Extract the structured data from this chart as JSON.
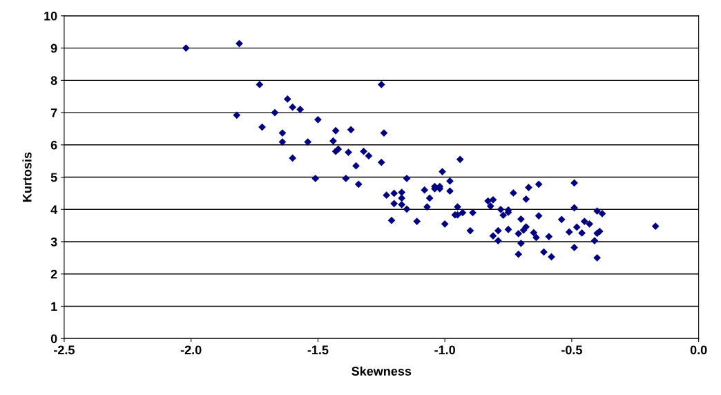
{
  "chart_data": {
    "type": "scatter",
    "xlabel": "Skewness",
    "ylabel": "Kurtosis",
    "marker": "diamond",
    "grid": "y",
    "xlim": [
      -2.5,
      0.0
    ],
    "ylim": [
      0,
      10
    ],
    "xticks": [
      {
        "value": -2.5,
        "label": "-2.5"
      },
      {
        "value": -2.0,
        "label": "-2.0"
      },
      {
        "value": -1.5,
        "label": "-1.5"
      },
      {
        "value": -1.0,
        "label": "-1.0"
      },
      {
        "value": -0.5,
        "label": "-0.5"
      },
      {
        "value": 0.0,
        "label": "0.0"
      }
    ],
    "yticks": [
      0,
      1,
      2,
      3,
      4,
      5,
      6,
      7,
      8,
      9,
      10
    ],
    "series": [
      {
        "color": "#000080",
        "x": [
          -2.02,
          -1.81,
          -1.73,
          -1.25,
          -1.62,
          -1.6,
          -1.57,
          -1.82,
          -1.67,
          -1.5,
          -1.72,
          -1.64,
          -1.43,
          -1.37,
          -1.24,
          -1.64,
          -1.54,
          -1.44,
          -1.43,
          -1.42,
          -1.38,
          -1.32,
          -1.3,
          -1.25,
          -1.6,
          -1.35,
          -1.51,
          -1.39,
          -1.34,
          -0.94,
          -1.01,
          -1.15,
          -0.98,
          -1.23,
          -1.2,
          -1.17,
          -1.17,
          -1.2,
          -1.17,
          -1.15,
          -1.21,
          -1.11,
          -1.08,
          -1.06,
          -1.07,
          -1.04,
          -1.02,
          -1.04,
          -1.02,
          -0.98,
          -1.0,
          -0.95,
          -0.96,
          -0.95,
          -0.93,
          -0.89,
          -0.9,
          -0.83,
          -0.81,
          -0.82,
          -0.78,
          -0.77,
          -0.75,
          -0.75,
          -0.73,
          -0.79,
          -0.81,
          -0.79,
          -0.75,
          -0.7,
          -0.71,
          -0.69,
          -0.68,
          -0.7,
          -0.71,
          -0.68,
          -0.67,
          -0.63,
          -0.65,
          -0.64,
          -0.63,
          -0.61,
          -0.49,
          -0.49,
          -0.4,
          -0.38,
          -0.54,
          -0.45,
          -0.43,
          -0.48,
          -0.51,
          -0.46,
          -0.39,
          -0.4,
          -0.41,
          -0.49,
          -0.4,
          -0.59,
          -0.58,
          -0.17
        ],
        "values": [
          9.0,
          9.14,
          7.87,
          7.87,
          7.42,
          7.17,
          7.1,
          6.92,
          7.0,
          6.78,
          6.55,
          6.37,
          6.44,
          6.47,
          6.37,
          6.09,
          6.09,
          6.12,
          5.8,
          5.87,
          5.77,
          5.8,
          5.66,
          5.46,
          5.59,
          5.35,
          4.96,
          4.96,
          4.78,
          5.55,
          5.17,
          4.96,
          4.88,
          4.44,
          4.5,
          4.53,
          4.35,
          4.18,
          4.15,
          4.01,
          3.66,
          3.63,
          4.6,
          4.35,
          4.08,
          4.71,
          4.71,
          4.64,
          4.64,
          4.57,
          3.55,
          4.08,
          3.83,
          3.83,
          3.9,
          3.9,
          3.34,
          4.26,
          4.3,
          4.1,
          4.0,
          3.82,
          3.98,
          3.91,
          4.51,
          3.34,
          3.18,
          3.03,
          3.38,
          3.7,
          3.25,
          3.36,
          3.46,
          2.95,
          2.61,
          4.32,
          4.68,
          4.78,
          3.28,
          3.13,
          3.8,
          2.68,
          4.82,
          4.05,
          3.95,
          3.87,
          3.69,
          3.63,
          3.55,
          3.45,
          3.3,
          3.27,
          3.32,
          3.26,
          3.03,
          2.82,
          2.5,
          3.16,
          2.53,
          3.48
        ]
      }
    ]
  }
}
